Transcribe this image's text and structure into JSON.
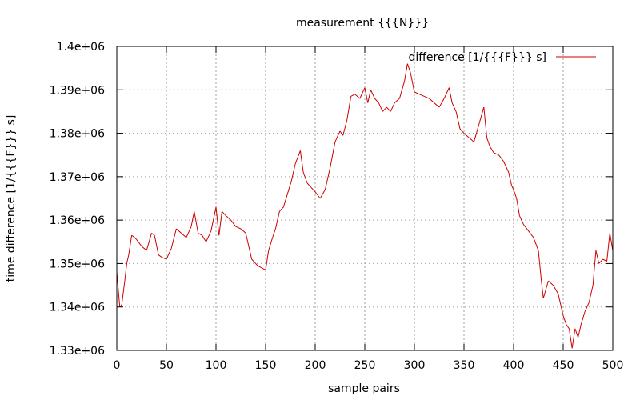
{
  "chart_data": {
    "type": "line",
    "title": "measurement {{{N}}}",
    "xlabel": "sample pairs",
    "ylabel": "time difference [1/{{{F}}} s]",
    "xlim": [
      0,
      500
    ],
    "ylim": [
      1330000,
      1400000
    ],
    "x_ticks": [
      0,
      50,
      100,
      150,
      200,
      250,
      300,
      350,
      400,
      450,
      500
    ],
    "x_tick_labels": [
      "0",
      "50",
      "100",
      "150",
      "200",
      "250",
      "300",
      "350",
      "400",
      "450",
      "500"
    ],
    "y_ticks": [
      1330000,
      1340000,
      1350000,
      1360000,
      1370000,
      1380000,
      1390000,
      1400000
    ],
    "y_tick_labels": [
      "1.33e+06",
      "1.34e+06",
      "1.35e+06",
      "1.36e+06",
      "1.37e+06",
      "1.38e+06",
      "1.39e+06",
      "1.4e+06"
    ],
    "grid": true,
    "legend_position": "top-right",
    "series": [
      {
        "name": "difference [1/{{{F}}} s]",
        "color": "#cc0000",
        "x": [
          0,
          3,
          5,
          8,
          10,
          12,
          15,
          18,
          20,
          25,
          30,
          35,
          38,
          42,
          45,
          50,
          55,
          60,
          65,
          70,
          75,
          78,
          82,
          86,
          90,
          95,
          100,
          103,
          106,
          110,
          115,
          120,
          125,
          130,
          136,
          140,
          142,
          146,
          150,
          153,
          157,
          160,
          164,
          168,
          172,
          176,
          180,
          185,
          188,
          192,
          196,
          200,
          205,
          210,
          215,
          220,
          225,
          228,
          232,
          236,
          240,
          245,
          250,
          253,
          256,
          260,
          264,
          268,
          272,
          276,
          280,
          285,
          290,
          293,
          296,
          300,
          305,
          310,
          315,
          320,
          325,
          330,
          335,
          338,
          342,
          346,
          350,
          355,
          360,
          365,
          370,
          373,
          376,
          380,
          385,
          390,
          395,
          398,
          400,
          403,
          406,
          410,
          415,
          420,
          425,
          428,
          430,
          435,
          440,
          445,
          450,
          453,
          456,
          459,
          462,
          465,
          468,
          472,
          476,
          480,
          483,
          486,
          490,
          494,
          497,
          500
        ],
        "values": [
          1348000,
          1340000,
          1340500,
          1346000,
          1350000,
          1352000,
          1356500,
          1356000,
          1355500,
          1354000,
          1353000,
          1357000,
          1356500,
          1352000,
          1351500,
          1351000,
          1353500,
          1358000,
          1357000,
          1356000,
          1358500,
          1362000,
          1357000,
          1356500,
          1355000,
          1357500,
          1363000,
          1356500,
          1362000,
          1361000,
          1360000,
          1358500,
          1358000,
          1357000,
          1351000,
          1350000,
          1349500,
          1349000,
          1348500,
          1353000,
          1356000,
          1358000,
          1362000,
          1363000,
          1366000,
          1369000,
          1373000,
          1376000,
          1371000,
          1368500,
          1367500,
          1366500,
          1365000,
          1367000,
          1372000,
          1378000,
          1380500,
          1379500,
          1383000,
          1388500,
          1389000,
          1388000,
          1390500,
          1387000,
          1390000,
          1388000,
          1387000,
          1385000,
          1386000,
          1385000,
          1387000,
          1388000,
          1392000,
          1396000,
          1394000,
          1389500,
          1389000,
          1388500,
          1388000,
          1387000,
          1386000,
          1388000,
          1390500,
          1387000,
          1385000,
          1381000,
          1380000,
          1379000,
          1378000,
          1382000,
          1386000,
          1379000,
          1377000,
          1375500,
          1375000,
          1373500,
          1371000,
          1368000,
          1367000,
          1365000,
          1361000,
          1359000,
          1357500,
          1356000,
          1353000,
          1346000,
          1342000,
          1346000,
          1345000,
          1343000,
          1338000,
          1336000,
          1335000,
          1330500,
          1335000,
          1333000,
          1336000,
          1339000,
          1341000,
          1345000,
          1353000,
          1350000,
          1351000,
          1350500,
          1357000,
          1353000
        ]
      }
    ]
  }
}
